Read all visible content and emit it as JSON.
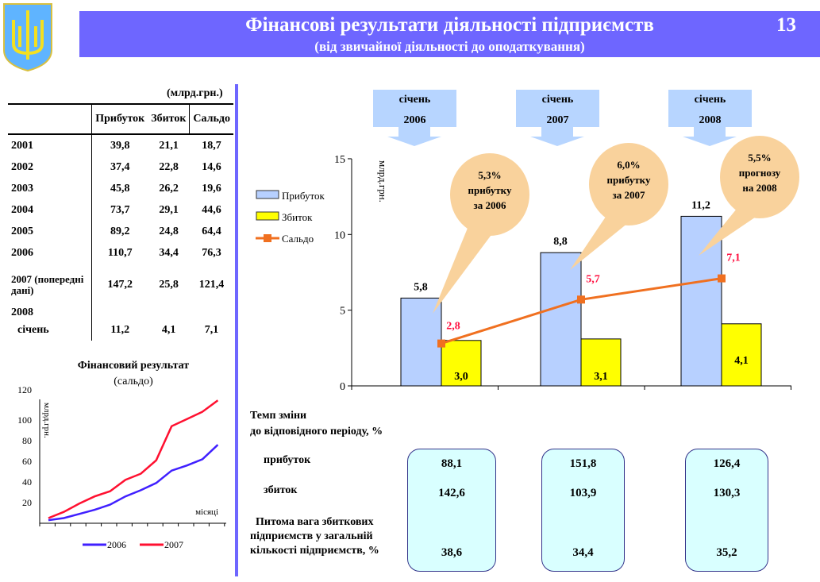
{
  "header": {
    "title": "Фінансові результати діяльності підприємств",
    "subtitle": "(від звичайної діяльності до оподаткування)",
    "page_number": "13"
  },
  "table": {
    "unit": "(млрд.грн.)",
    "columns": [
      "",
      "Прибуток",
      "Збиток",
      "Сальдо"
    ],
    "rows": [
      [
        "2001",
        "39,8",
        "21,1",
        "18,7"
      ],
      [
        "2002",
        "37,4",
        "22,8",
        "14,6"
      ],
      [
        "2003",
        "45,8",
        "26,2",
        "19,6"
      ],
      [
        "2004",
        "73,7",
        "29,1",
        "44,6"
      ],
      [
        "2005",
        "89,2",
        "24,8",
        "64,4"
      ],
      [
        "2006",
        "110,7",
        "34,4",
        "76,3"
      ],
      [
        "2007 (попередні дані)",
        "147,2",
        "25,8",
        "121,4"
      ],
      [
        "2008",
        "",
        "",
        ""
      ],
      [
        "січень",
        "11,2",
        "4,1",
        "7,1"
      ]
    ]
  },
  "period_labels": [
    {
      "month": "січень",
      "year": "2006"
    },
    {
      "month": "січень",
      "year": "2007"
    },
    {
      "month": "січень",
      "year": "2008"
    }
  ],
  "callouts": [
    [
      "5,3%",
      "прибутку",
      "за  2006"
    ],
    [
      "6,0%",
      "прибутку",
      "за  2007"
    ],
    [
      "5,5%",
      "прогнозу",
      "на  2008"
    ]
  ],
  "growth": {
    "title1": "Темп зміни",
    "title2": "до відповідного періоду, %",
    "profit_label": "прибуток",
    "loss_label": "збиток",
    "share_label": [
      "Питома вага збиткових",
      "підприємств у загальній",
      "кількості підприємств, %"
    ],
    "columns": [
      {
        "profit": "88,1",
        "loss": "142,6",
        "share": "38,6"
      },
      {
        "profit": "151,8",
        "loss": "103,9",
        "share": "34,4"
      },
      {
        "profit": "126,4",
        "loss": "130,3",
        "share": "35,2"
      }
    ]
  },
  "chart_data": [
    {
      "type": "bar",
      "title": "",
      "categories": [
        "січень 2006",
        "січень 2007",
        "січень 2008"
      ],
      "ylabel": "млрд.грн.",
      "ylim": [
        0,
        15
      ],
      "yticks": [
        0,
        5,
        10,
        15
      ],
      "legend": "left",
      "series": [
        {
          "name": "Прибуток",
          "kind": "bar",
          "color": "#b7d0ff",
          "values": [
            5.8,
            8.8,
            11.2
          ],
          "labels": [
            "5,8",
            "8,8",
            "11,2"
          ]
        },
        {
          "name": "Збиток",
          "kind": "bar",
          "color": "#ffff00",
          "values": [
            3.0,
            3.1,
            4.1
          ],
          "labels": [
            "3,0",
            "3,1",
            "4,1"
          ]
        },
        {
          "name": "Сальдо",
          "kind": "line",
          "color": "#f07020",
          "values": [
            2.8,
            5.7,
            7.1
          ],
          "labels": [
            "2,8",
            "5,7",
            "7,1"
          ]
        }
      ]
    },
    {
      "type": "line",
      "title": "Фінансовий  результат",
      "subtitle": "(сальдо)",
      "ylabel": "млрд.грн.",
      "xlabel": "місяці",
      "ylim": [
        0,
        120
      ],
      "yticks": [
        20,
        40,
        60,
        80,
        100,
        120
      ],
      "legend": "bottom",
      "x": [
        1,
        2,
        3,
        4,
        5,
        6,
        7,
        8,
        9,
        10,
        11,
        12
      ],
      "series": [
        {
          "name": "2006",
          "color": "#4020ff",
          "values": [
            3,
            5,
            9,
            13,
            18,
            26,
            32,
            39,
            51,
            56,
            62,
            76
          ]
        },
        {
          "name": "2007",
          "color": "#ff1030",
          "values": [
            5,
            11,
            19,
            26,
            31,
            42,
            48,
            61,
            94,
            101,
            108,
            119
          ]
        }
      ]
    }
  ]
}
